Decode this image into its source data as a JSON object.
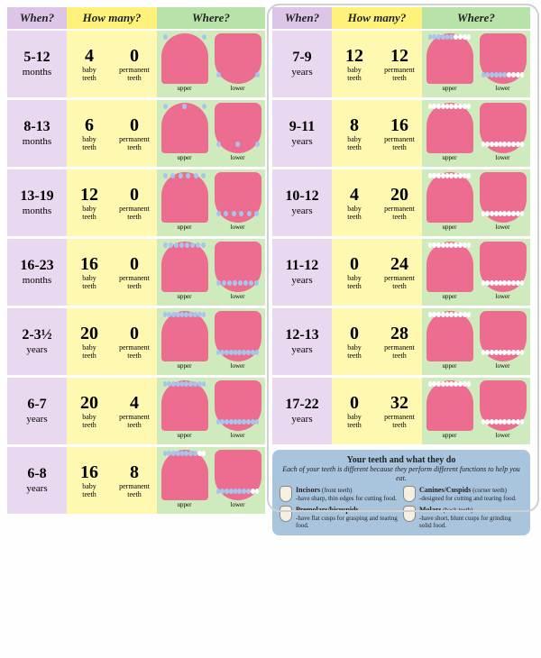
{
  "headers": {
    "when": "When?",
    "how": "How many?",
    "where": "Where?"
  },
  "labels": {
    "baby": "baby\nteeth",
    "perm": "permanent\nteeth",
    "upper": "upper",
    "lower": "lower"
  },
  "left_rows": [
    {
      "age": "5-12",
      "unit": "months",
      "baby": 4,
      "perm": 0
    },
    {
      "age": "8-13",
      "unit": "months",
      "baby": 6,
      "perm": 0
    },
    {
      "age": "13-19",
      "unit": "months",
      "baby": 12,
      "perm": 0
    },
    {
      "age": "16-23",
      "unit": "months",
      "baby": 16,
      "perm": 0
    },
    {
      "age": "2-3½",
      "unit": "years",
      "baby": 20,
      "perm": 0
    },
    {
      "age": "6-7",
      "unit": "years",
      "baby": 20,
      "perm": 4
    },
    {
      "age": "6-8",
      "unit": "years",
      "baby": 16,
      "perm": 8
    }
  ],
  "right_rows": [
    {
      "age": "7-9",
      "unit": "years",
      "baby": 12,
      "perm": 12
    },
    {
      "age": "9-11",
      "unit": "years",
      "baby": 8,
      "perm": 16
    },
    {
      "age": "10-12",
      "unit": "years",
      "baby": 4,
      "perm": 20
    },
    {
      "age": "11-12",
      "unit": "years",
      "baby": 0,
      "perm": 24
    },
    {
      "age": "12-13",
      "unit": "years",
      "baby": 0,
      "perm": 28
    },
    {
      "age": "17-22",
      "unit": "years",
      "baby": 0,
      "perm": 32
    }
  ],
  "info": {
    "title": "Your teeth and what they do",
    "subtitle": "Each of your teeth is different because they perform different functions to help you eat.",
    "items": [
      {
        "name": "Incisors",
        "paren": "(front teeth)",
        "desc": "-have sharp, thin edges for cutting food."
      },
      {
        "name": "Canines/Cuspids",
        "paren": "(corner teeth)",
        "desc": "-designed for cutting and tearing food."
      },
      {
        "name": "Premolars/bicuspids",
        "paren": "",
        "desc": "-have flat cusps for grasping and tearing food."
      },
      {
        "name": "Molars",
        "paren": "(back teeth)",
        "desc": "-have short, blunt cusps for grinding solid food."
      }
    ]
  },
  "colors": {
    "when_bg": "#e8d9f0",
    "how_bg": "#fff8b0",
    "where_bg": "#cfebbd",
    "arch_fill": "#ec6d8f",
    "baby_tooth": "#a8c5ed",
    "perm_tooth": "#ffffff",
    "info_bg": "#a9c4dd"
  }
}
